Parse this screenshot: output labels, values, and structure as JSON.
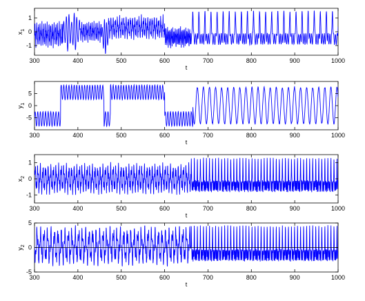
{
  "chart_data": [
    {
      "type": "line",
      "ylabel": "x",
      "ylabel_sub": "1",
      "xlabel": "t",
      "xlim": [
        300,
        1000
      ],
      "ylim": [
        -1.7,
        1.7
      ],
      "xticks": [
        300,
        400,
        500,
        600,
        700,
        800,
        900,
        1000
      ],
      "yticks": [
        -1,
        0,
        1
      ],
      "line_color": "#0000ff",
      "zero_line": false,
      "regimes": [
        {
          "t_start": 300,
          "t_end": 365,
          "shape": "irregular",
          "amplitude": 1.0,
          "offset": -0.2,
          "period": 4
        },
        {
          "t_start": 365,
          "t_end": 405,
          "shape": "burst",
          "amplitude": 1.4,
          "offset": 0.0,
          "period": 6
        },
        {
          "t_start": 405,
          "t_end": 455,
          "shape": "irregular",
          "amplitude": 0.8,
          "offset": 0.0,
          "period": 4
        },
        {
          "t_start": 455,
          "t_end": 470,
          "shape": "burst",
          "amplitude": 1.3,
          "offset": -0.3,
          "period": 5
        },
        {
          "t_start": 470,
          "t_end": 600,
          "shape": "irregular",
          "amplitude": 0.9,
          "offset": 0.3,
          "period": 5
        },
        {
          "t_start": 600,
          "t_end": 660,
          "shape": "irregular",
          "amplitude": 0.8,
          "offset": -0.4,
          "period": 3
        },
        {
          "t_start": 660,
          "t_end": 1000,
          "shape": "spike",
          "amplitude": 1.5,
          "offset": 0.0,
          "period": 14
        }
      ]
    },
    {
      "type": "line",
      "ylabel": "y",
      "ylabel_sub": "1",
      "xlabel": "t",
      "xlim": [
        300,
        1000
      ],
      "ylim": [
        -10,
        10
      ],
      "xticks": [
        300,
        400,
        500,
        600,
        700,
        800,
        900,
        1000
      ],
      "yticks": [
        -5,
        0,
        5
      ],
      "line_color": "#0000ff",
      "zero_line": false,
      "regimes": [
        {
          "t_start": 300,
          "t_end": 360,
          "shape": "sine",
          "amplitude": 3.0,
          "offset": -5.5,
          "period": 6
        },
        {
          "t_start": 360,
          "t_end": 400,
          "shape": "sine",
          "amplitude": 3.0,
          "offset": 5.5,
          "period": 6
        },
        {
          "t_start": 400,
          "t_end": 460,
          "shape": "sine",
          "amplitude": 3.0,
          "offset": 5.5,
          "period": 6
        },
        {
          "t_start": 460,
          "t_end": 475,
          "shape": "sine",
          "amplitude": 3.0,
          "offset": -5.5,
          "period": 6
        },
        {
          "t_start": 475,
          "t_end": 600,
          "shape": "sine",
          "amplitude": 3.0,
          "offset": 5.5,
          "period": 6
        },
        {
          "t_start": 600,
          "t_end": 665,
          "shape": "sine",
          "amplitude": 3.0,
          "offset": -5.5,
          "period": 6
        },
        {
          "t_start": 665,
          "t_end": 1000,
          "shape": "sine",
          "amplitude": 7.5,
          "offset": 0.0,
          "period": 14
        }
      ]
    },
    {
      "type": "line",
      "ylabel": "x",
      "ylabel_sub": "2",
      "xlabel": "t",
      "xlim": [
        300,
        1000
      ],
      "ylim": [
        -1.5,
        1.5
      ],
      "xticks": [
        300,
        400,
        500,
        600,
        700,
        800,
        900,
        1000
      ],
      "yticks": [
        -1,
        0,
        1
      ],
      "line_color": "#0000ff",
      "zero_line": false,
      "regimes": [
        {
          "t_start": 300,
          "t_end": 660,
          "shape": "irregular",
          "amplitude": 1.0,
          "offset": 0.0,
          "period": 6
        },
        {
          "t_start": 660,
          "t_end": 1000,
          "shape": "spike",
          "amplitude": 1.3,
          "offset": 0.0,
          "period": 7
        }
      ]
    },
    {
      "type": "line",
      "ylabel": "y",
      "ylabel_sub": "2",
      "xlabel": "t",
      "xlim": [
        300,
        1000
      ],
      "ylim": [
        -5,
        5
      ],
      "xticks": [
        300,
        400,
        500,
        600,
        700,
        800,
        900,
        1000
      ],
      "yticks": [
        -5,
        0,
        5
      ],
      "line_color": "#0000ff",
      "zero_line": true,
      "regimes": [
        {
          "t_start": 300,
          "t_end": 660,
          "shape": "irregular",
          "amplitude": 4.2,
          "offset": 0.3,
          "period": 8
        },
        {
          "t_start": 660,
          "t_end": 1000,
          "shape": "spike",
          "amplitude": 4.5,
          "offset": 0.0,
          "period": 7
        }
      ]
    }
  ]
}
